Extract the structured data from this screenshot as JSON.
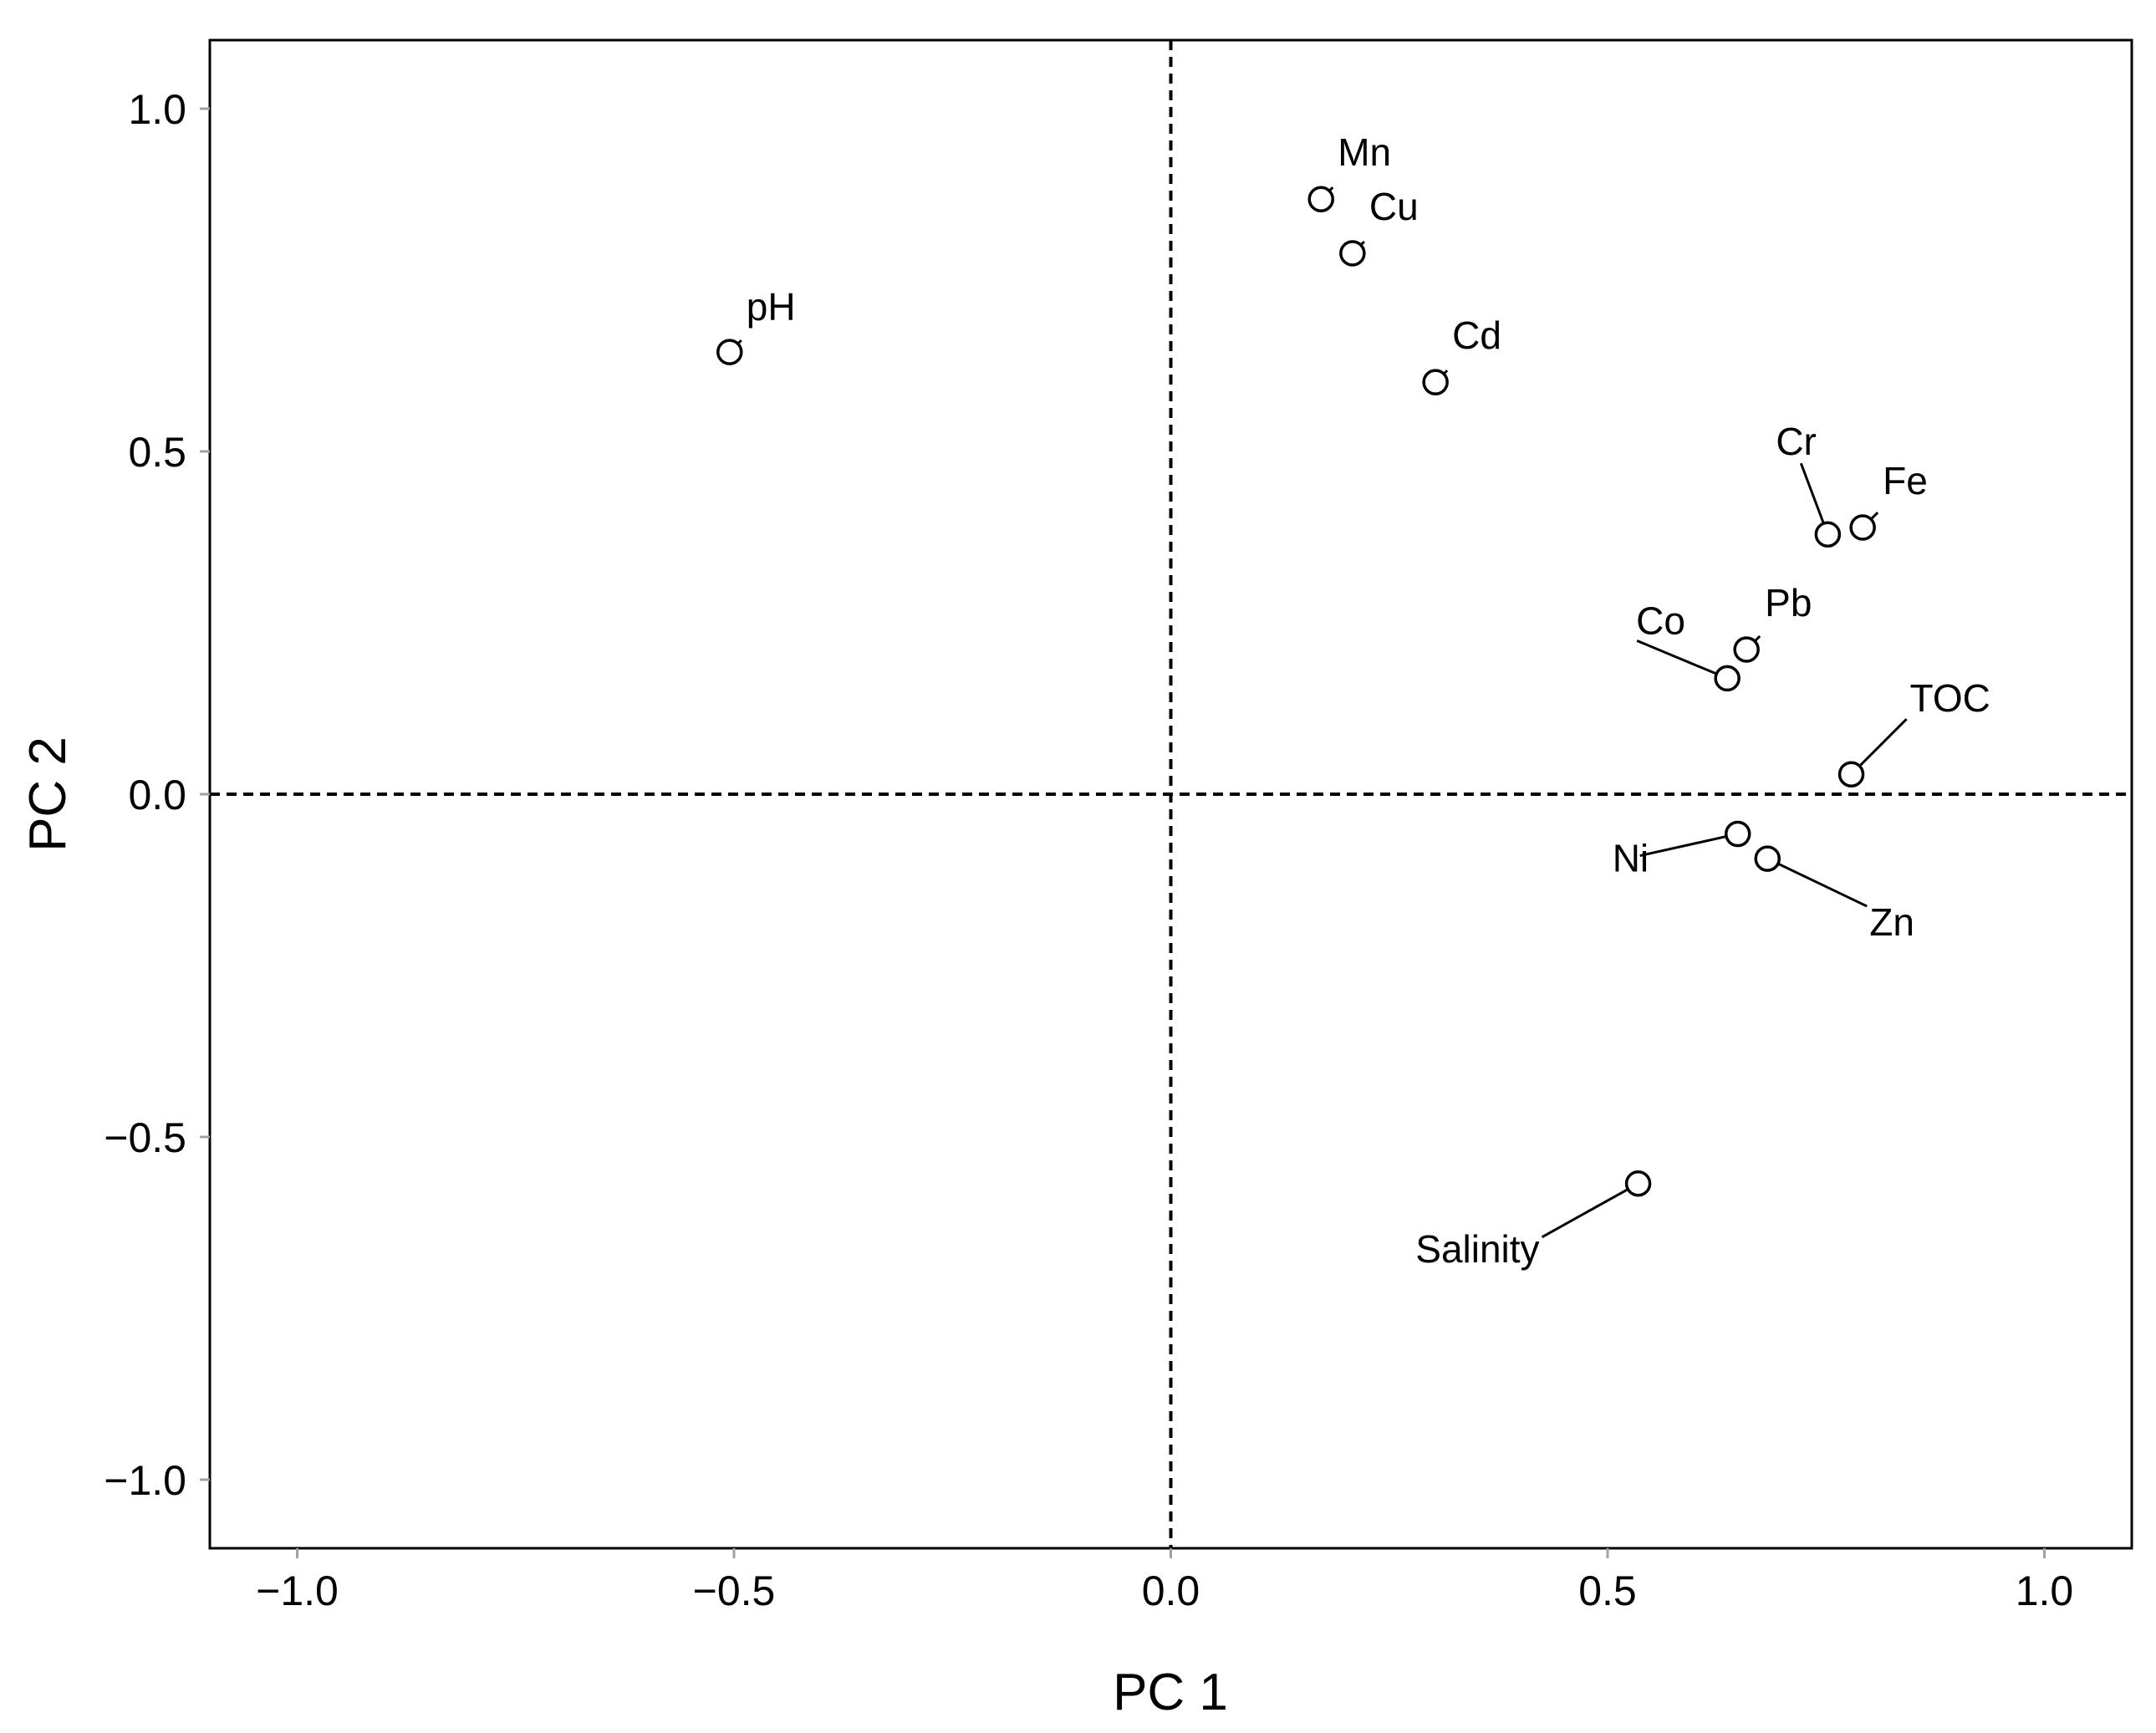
{
  "chart_data": {
    "type": "scatter",
    "title": "",
    "xlabel": "PC 1",
    "ylabel": "PC 2",
    "xlim": [
      -1.1,
      1.1
    ],
    "ylim": [
      -1.1,
      1.1
    ],
    "x_ticks": [
      -1.0,
      -0.5,
      0.0,
      0.5,
      1.0
    ],
    "y_ticks": [
      -1.0,
      -0.5,
      0.0,
      0.5,
      1.0
    ],
    "x_tick_labels": [
      "−1.0",
      "−0.5",
      "0.0",
      "0.5",
      "1.0"
    ],
    "y_tick_labels": [
      "−1.0",
      "−0.5",
      "0.0",
      "0.5",
      "1.0"
    ],
    "reference_lines": {
      "x": 0.0,
      "y": 0.0,
      "style": "dashed"
    },
    "grid": false,
    "legend": "none",
    "marker": "open-circle",
    "points": [
      {
        "label": "pH",
        "x": -0.505,
        "y": 0.645
      },
      {
        "label": "Mn",
        "x": 0.172,
        "y": 0.868
      },
      {
        "label": "Cu",
        "x": 0.208,
        "y": 0.789
      },
      {
        "label": "Cd",
        "x": 0.303,
        "y": 0.601
      },
      {
        "label": "Cr",
        "x": 0.752,
        "y": 0.379
      },
      {
        "label": "Fe",
        "x": 0.792,
        "y": 0.389
      },
      {
        "label": "Pb",
        "x": 0.659,
        "y": 0.211
      },
      {
        "label": "Co",
        "x": 0.637,
        "y": 0.169
      },
      {
        "label": "TOC",
        "x": 0.779,
        "y": 0.029
      },
      {
        "label": "Ni",
        "x": 0.649,
        "y": -0.058
      },
      {
        "label": "Zn",
        "x": 0.683,
        "y": -0.094
      },
      {
        "label": "Salinity",
        "x": 0.535,
        "y": -0.568
      }
    ]
  },
  "colors": {
    "foreground": "#000000",
    "tick": "#a0a0a0",
    "background": "#ffffff"
  }
}
